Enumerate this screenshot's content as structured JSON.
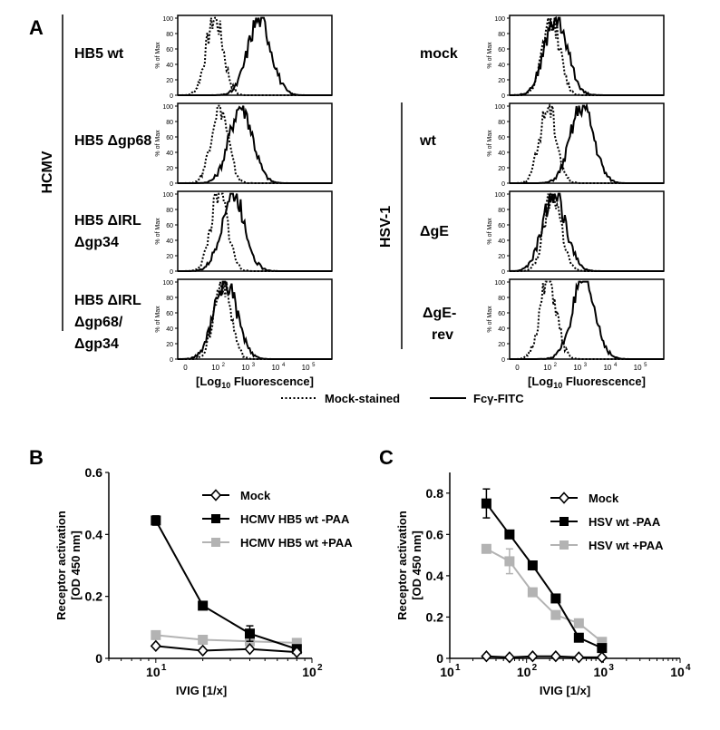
{
  "panel_labels": {
    "a": "A",
    "b": "B",
    "c": "C"
  },
  "group_labels": {
    "hcmv": "HCMV",
    "hsv": "HSV-1"
  },
  "histogram": {
    "ylabel": "% of Max",
    "yticks": [
      "0",
      "20",
      "40",
      "60",
      "80",
      "100"
    ],
    "xlabel_prefix": "[Log",
    "xlabel_sub": "10",
    "xlabel_suffix": " Fluorescence]",
    "xtick_base": [
      "0",
      "10",
      "10",
      "10",
      "10"
    ],
    "xtick_exp": [
      "",
      "2",
      "3",
      "4",
      "5"
    ]
  },
  "hcmv_rows": [
    {
      "line1": "HB5 wt",
      "line2": "",
      "line3": ""
    },
    {
      "line1": "HB5 Δgp68",
      "line2": "",
      "line3": ""
    },
    {
      "line1": "HB5 ΔIRL",
      "line2": "Δgp34",
      "line3": ""
    },
    {
      "line1": "HB5 ΔIRL",
      "line2": "Δgp68/",
      "line3": "Δgp34"
    }
  ],
  "hsv_rows": [
    {
      "line1": "mock",
      "line2": ""
    },
    {
      "line1": "wt",
      "line2": ""
    },
    {
      "line1": "ΔgE",
      "line2": ""
    },
    {
      "line1": "ΔgE-",
      "line2": "rev"
    }
  ],
  "legend_a": {
    "mock": "Mock-stained",
    "fc": "Fcγ-FITC"
  },
  "colors": {
    "black": "#000000",
    "gray": "#b3b3b3"
  },
  "chart_data": [
    {
      "type": "line",
      "panel": "B",
      "xlabel": "IVIG [1/x]",
      "ylabel": "Receptor activation [OD 450 nm]",
      "xscale": "log",
      "xlim": [
        5,
        100
      ],
      "ylim": [
        0,
        0.6
      ],
      "yticks": [
        "0",
        "0.2",
        "0.4",
        "0.6"
      ],
      "xticks": [
        {
          "base": "10",
          "exp": "1",
          "value": 10
        },
        {
          "base": "10",
          "exp": "2",
          "value": 100
        }
      ],
      "legend_position": "top-right",
      "series": [
        {
          "name": "Mock",
          "marker": "diamond",
          "color": "#000000",
          "x": [
            10,
            20,
            40,
            80
          ],
          "y": [
            0.04,
            0.025,
            0.03,
            0.02
          ],
          "err": [
            0,
            0,
            0,
            0
          ]
        },
        {
          "name": "HCMV HB5 wt -PAA",
          "marker": "square",
          "color": "#000000",
          "x": [
            10,
            20,
            40,
            80
          ],
          "y": [
            0.445,
            0.17,
            0.08,
            0.03
          ],
          "err": [
            0.015,
            0.012,
            0.025,
            0
          ]
        },
        {
          "name": "HCMV HB5 wt +PAA",
          "marker": "square",
          "color": "#b3b3b3",
          "x": [
            10,
            20,
            40,
            80
          ],
          "y": [
            0.075,
            0.06,
            0.055,
            0.05
          ],
          "err": [
            0,
            0,
            0,
            0
          ]
        }
      ]
    },
    {
      "type": "line",
      "panel": "C",
      "xlabel": "IVIG [1/x]",
      "ylabel": "Receptor activation [OD 450 nm]",
      "xscale": "log",
      "xlim": [
        10,
        10000
      ],
      "ylim": [
        0,
        0.9
      ],
      "yticks": [
        "0",
        "0.2",
        "0.4",
        "0.6",
        "0.8"
      ],
      "xticks": [
        {
          "base": "10",
          "exp": "1",
          "value": 10
        },
        {
          "base": "10",
          "exp": "2",
          "value": 100
        },
        {
          "base": "10",
          "exp": "3",
          "value": 1000
        },
        {
          "base": "10",
          "exp": "4",
          "value": 10000
        }
      ],
      "legend_position": "top-right",
      "series": [
        {
          "name": "Mock",
          "marker": "diamond",
          "color": "#000000",
          "x": [
            30,
            60,
            120,
            240,
            480,
            960
          ],
          "y": [
            0.01,
            0.005,
            0.01,
            0.01,
            0.005,
            0.005
          ],
          "err": [
            0,
            0,
            0,
            0,
            0,
            0
          ]
        },
        {
          "name": "HSV wt -PAA",
          "marker": "square",
          "color": "#000000",
          "x": [
            30,
            60,
            120,
            240,
            480,
            960
          ],
          "y": [
            0.75,
            0.6,
            0.45,
            0.29,
            0.1,
            0.05
          ],
          "err": [
            0.07,
            0,
            0,
            0,
            0,
            0
          ]
        },
        {
          "name": "HSV wt +PAA",
          "marker": "square",
          "color": "#b3b3b3",
          "x": [
            30,
            60,
            120,
            240,
            480,
            960
          ],
          "y": [
            0.53,
            0.47,
            0.32,
            0.21,
            0.17,
            0.08
          ],
          "err": [
            0,
            0.06,
            0,
            0,
            0,
            0
          ]
        }
      ]
    }
  ]
}
